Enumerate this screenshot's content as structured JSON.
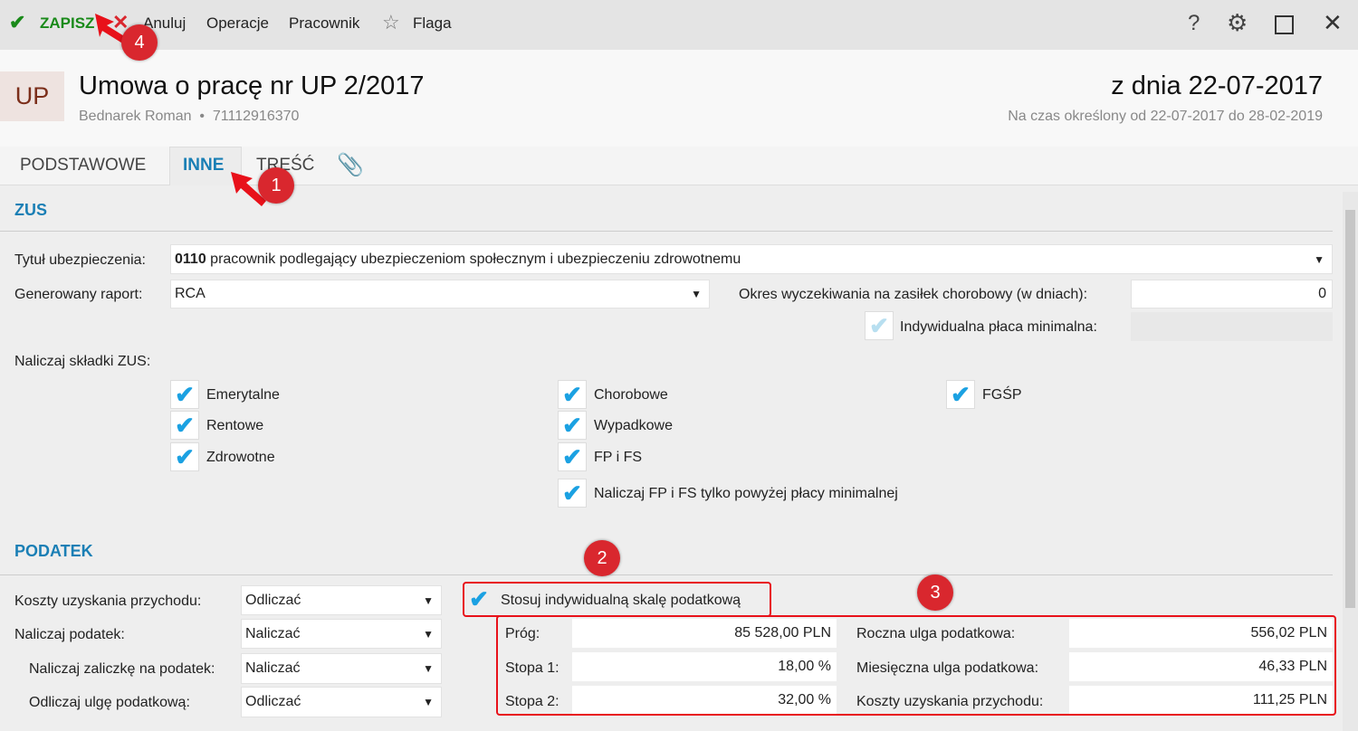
{
  "toolbar": {
    "save": "ZAPISZ",
    "cancel": "Anuluj",
    "operations": "Operacje",
    "employee": "Pracownik",
    "flag": "Flaga"
  },
  "header": {
    "badge": "UP",
    "title": "Umowa o pracę nr UP 2/2017",
    "person": "Bednarek Roman",
    "pesel": "71112916370",
    "date": "z dnia 22-07-2017",
    "period": "Na czas określony od 22-07-2017 do 28-02-2019"
  },
  "tabs": [
    "PODSTAWOWE",
    "INNE",
    "TREŚĆ"
  ],
  "zus": {
    "heading": "ZUS",
    "title_label": "Tytuł ubezpieczenia:",
    "title_code": "0110",
    "title_value": "pracownik podlegający ubezpieczeniom społecznym i ubezpieczeniu zdrowotnemu",
    "report_label": "Generowany raport:",
    "report_value": "RCA",
    "waiting_label": "Okres wyczekiwania na zasiłek chorobowy (w dniach):",
    "waiting_value": "0",
    "min_wage_label": "Indywidualna płaca minimalna:",
    "contrib_label": "Naliczaj składki ZUS:",
    "checks": [
      "Emerytalne",
      "Rentowe",
      "Zdrowotne",
      "Chorobowe",
      "Wypadkowe",
      "FP i FS",
      "Naliczaj FP i FS tylko powyżej płacy minimalnej",
      "FGŚP"
    ]
  },
  "tax": {
    "heading": "PODATEK",
    "rows": [
      {
        "label": "Koszty uzyskania przychodu:",
        "value": "Odliczać"
      },
      {
        "label": "Naliczaj podatek:",
        "value": "Naliczać"
      },
      {
        "label": "Naliczaj zaliczkę na podatek:",
        "value": "Naliczać"
      },
      {
        "label": "Odliczaj ulgę podatkową:",
        "value": "Odliczać"
      }
    ],
    "individual_scale": "Stosuj indywidualną skalę podatkową",
    "left": [
      {
        "label": "Próg:",
        "value": "85 528,00 PLN"
      },
      {
        "label": "Stopa 1:",
        "value": "18,00 %"
      },
      {
        "label": "Stopa 2:",
        "value": "32,00 %"
      }
    ],
    "right": [
      {
        "label": "Roczna ulga podatkowa:",
        "value": "556,02 PLN"
      },
      {
        "label": "Miesięczna ulga podatkowa:",
        "value": "46,33 PLN"
      },
      {
        "label": "Koszty uzyskania przychodu:",
        "value": "111,25 PLN"
      }
    ]
  },
  "annotations": [
    "1",
    "2",
    "3",
    "4"
  ]
}
